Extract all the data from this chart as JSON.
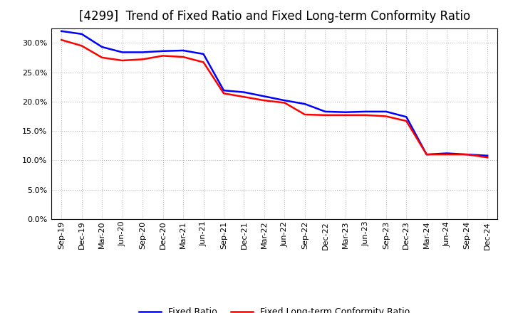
{
  "title": "[4299]  Trend of Fixed Ratio and Fixed Long-term Conformity Ratio",
  "x_labels": [
    "Sep-19",
    "Dec-19",
    "Mar-20",
    "Jun-20",
    "Sep-20",
    "Dec-20",
    "Mar-21",
    "Jun-21",
    "Sep-21",
    "Dec-21",
    "Mar-22",
    "Jun-22",
    "Sep-22",
    "Dec-22",
    "Mar-23",
    "Jun-23",
    "Sep-23",
    "Dec-23",
    "Mar-24",
    "Jun-24",
    "Sep-24",
    "Dec-24"
  ],
  "fixed_ratio": [
    0.32,
    0.315,
    0.293,
    0.284,
    0.284,
    0.286,
    0.287,
    0.281,
    0.219,
    0.216,
    0.209,
    0.202,
    0.196,
    0.183,
    0.182,
    0.183,
    0.183,
    0.174,
    0.11,
    0.112,
    0.11,
    0.108
  ],
  "fixed_lt_ratio": [
    0.305,
    0.295,
    0.275,
    0.27,
    0.272,
    0.278,
    0.276,
    0.267,
    0.214,
    0.208,
    0.202,
    0.198,
    0.178,
    0.177,
    0.177,
    0.177,
    0.175,
    0.167,
    0.11,
    0.11,
    0.11,
    0.105
  ],
  "fixed_ratio_color": "#0000FF",
  "fixed_lt_ratio_color": "#FF0000",
  "line_width": 1.8,
  "ylim": [
    0.0,
    0.325
  ],
  "yticks": [
    0.0,
    0.05,
    0.1,
    0.15,
    0.2,
    0.25,
    0.3
  ],
  "legend_fixed": "Fixed Ratio",
  "legend_lt": "Fixed Long-term Conformity Ratio",
  "bg_color": "#FFFFFF",
  "plot_bg_color": "#FFFFFF",
  "grid_color": "#AAAAAA",
  "title_fontsize": 12,
  "tick_fontsize": 8,
  "legend_fontsize": 9
}
